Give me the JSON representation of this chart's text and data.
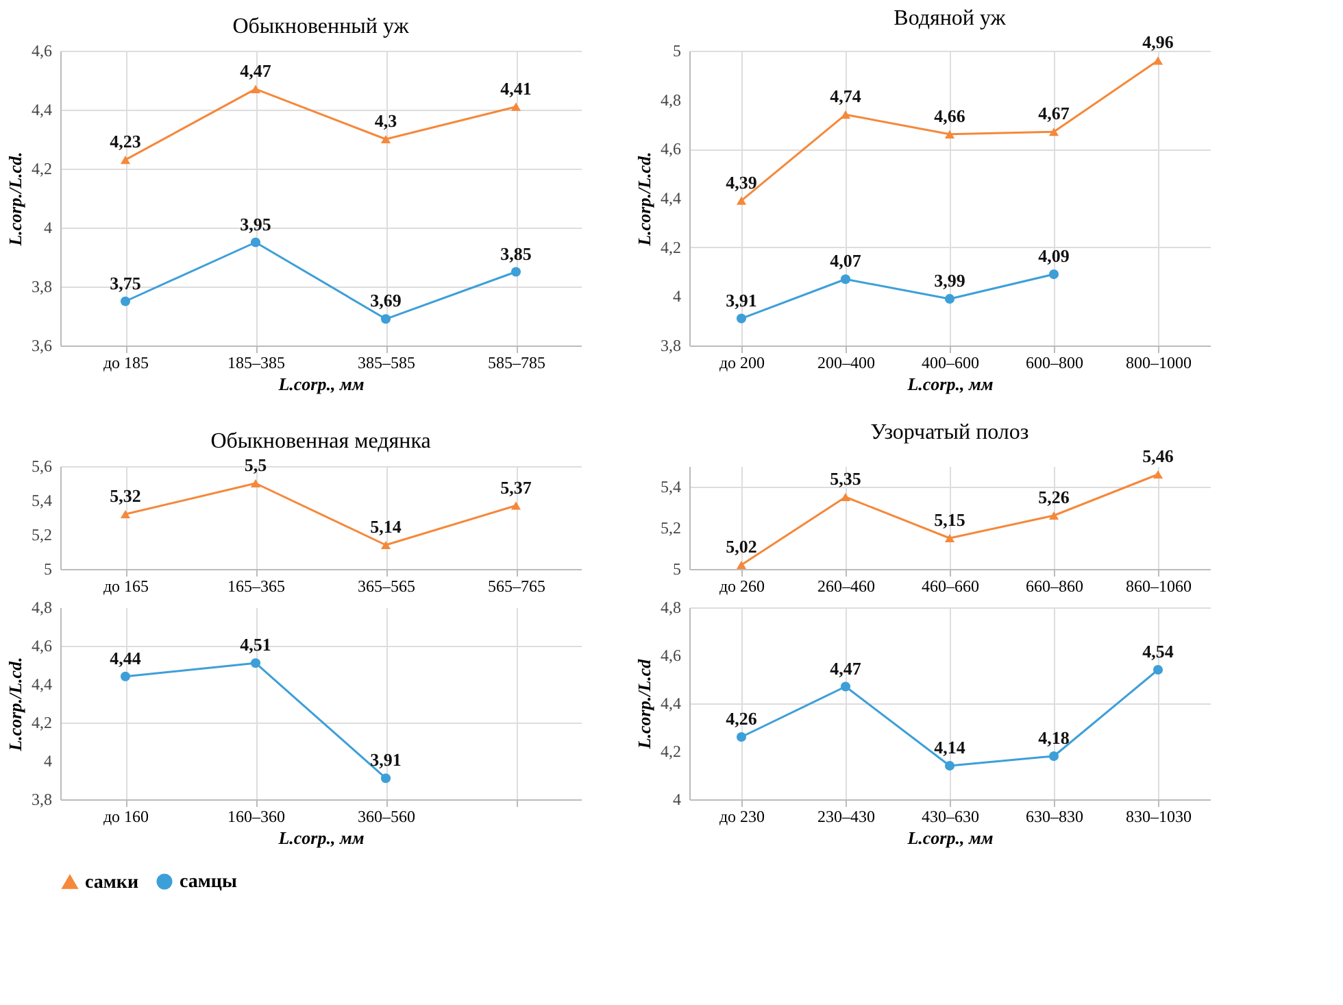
{
  "chart_data": [
    {
      "type": "line",
      "title": "Обыкновенный уж",
      "xlabel": "L.corp., мм",
      "ylabel": "L.corp./L.cd.",
      "categories": [
        "до 185",
        "185–385",
        "385–585",
        "585–785"
      ],
      "ylim": [
        3.6,
        4.6
      ],
      "yticks": [
        {
          "value": 3.6,
          "label": "3,6"
        },
        {
          "value": 3.8,
          "label": "3,8"
        },
        4,
        {
          "value": 4.2,
          "label": "4,2"
        },
        {
          "value": 4.4,
          "label": "4,4"
        },
        {
          "value": 4.6,
          "label": "4,6"
        }
      ],
      "grid": true,
      "legend": "bottom",
      "series": [
        {
          "name": "самки",
          "color": "#f5883a",
          "marker": "triangle",
          "values": [
            4.23,
            4.47,
            4.3,
            4.41
          ],
          "value_labels": [
            "4,23",
            "4,47",
            "4,3",
            "4,41"
          ]
        },
        {
          "name": "самцы",
          "color": "#3d9fd8",
          "marker": "circle",
          "values": [
            3.75,
            3.95,
            3.69,
            3.85
          ],
          "value_labels": [
            "3,75",
            "3,95",
            "3,69",
            "3,85"
          ]
        }
      ]
    },
    {
      "type": "line",
      "title": "Водяной уж",
      "xlabel": "L.corp., мм",
      "ylabel": "L.corp./L.cd.",
      "categories": [
        "до 200",
        "200–400",
        "400–600",
        "600–800",
        "800–1000"
      ],
      "ylim": [
        3.8,
        5.0
      ],
      "yticks": [
        {
          "value": 3.8,
          "label": "3,8"
        },
        4,
        {
          "value": 4.2,
          "label": "4,2"
        },
        {
          "value": 4.4,
          "label": "4,4"
        },
        {
          "value": 4.6,
          "label": "4,6"
        },
        {
          "value": 4.8,
          "label": "4,8"
        },
        5
      ],
      "grid": true,
      "series": [
        {
          "name": "самки",
          "color": "#f5883a",
          "marker": "triangle",
          "values": [
            4.39,
            4.74,
            4.66,
            4.67,
            4.96
          ],
          "value_labels": [
            "4,39",
            "4,74",
            "4,66",
            "4,67",
            "4,96"
          ]
        },
        {
          "name": "самцы",
          "color": "#3d9fd8",
          "marker": "circle",
          "values": [
            3.91,
            4.07,
            3.99,
            4.09,
            null
          ],
          "value_labels": [
            "3,91",
            "4,07",
            "3,99",
            "4,09",
            null
          ]
        }
      ]
    },
    {
      "type": "line",
      "title": "Обыкновенная медянка",
      "categories": [
        "до 165",
        "165–365",
        "365–565",
        "565–765"
      ],
      "ylim": [
        5.0,
        5.6
      ],
      "yticks": [
        5,
        {
          "value": 5.2,
          "label": "5,2"
        },
        {
          "value": 5.4,
          "label": "5,4"
        },
        {
          "value": 5.6,
          "label": "5,6"
        }
      ],
      "grid": true,
      "series": [
        {
          "name": "самки",
          "color": "#f5883a",
          "marker": "triangle",
          "values": [
            5.32,
            5.5,
            5.14,
            5.37
          ],
          "value_labels": [
            "5,32",
            "5,5",
            "5,14",
            "5,37"
          ]
        }
      ]
    },
    {
      "type": "line",
      "xlabel": "L.corp., мм",
      "ylabel": "L.corp./L.cd.",
      "categories": [
        "до 160",
        "160–360",
        "360–560",
        null
      ],
      "ylim": [
        3.8,
        4.8
      ],
      "yticks": [
        {
          "value": 3.8,
          "label": "3,8"
        },
        4,
        {
          "value": 4.2,
          "label": "4,2"
        },
        {
          "value": 4.4,
          "label": "4,4"
        },
        {
          "value": 4.6,
          "label": "4,6"
        },
        {
          "value": 4.8,
          "label": "4,8"
        }
      ],
      "grid": true,
      "series": [
        {
          "name": "самцы",
          "color": "#3d9fd8",
          "marker": "circle",
          "values": [
            4.44,
            4.51,
            3.91,
            null
          ],
          "value_labels": [
            "4,44",
            "4,51",
            "3,91",
            null
          ]
        }
      ]
    },
    {
      "type": "line",
      "title": "Узорчатый полоз",
      "categories": [
        "до 260",
        "260–460",
        "460–660",
        "660–860",
        "860–1060"
      ],
      "ylim": [
        5.0,
        5.5
      ],
      "yticks": [
        5,
        {
          "value": 5.2,
          "label": "5,2"
        },
        {
          "value": 5.4,
          "label": "5,4"
        }
      ],
      "grid": true,
      "series": [
        {
          "name": "самки",
          "color": "#f5883a",
          "marker": "triangle",
          "values": [
            5.02,
            5.35,
            5.15,
            5.26,
            5.46
          ],
          "value_labels": [
            "5,02",
            "5,35",
            "5,15",
            "5,26",
            "5,46"
          ]
        }
      ]
    },
    {
      "type": "line",
      "xlabel": "L.corp., мм",
      "ylabel": "L.corp./L.cd",
      "categories": [
        "до 230",
        "230–430",
        "430–630",
        "630–830",
        "830–1030"
      ],
      "ylim": [
        4.0,
        4.8
      ],
      "yticks": [
        4,
        {
          "value": 4.2,
          "label": "4,2"
        },
        {
          "value": 4.4,
          "label": "4,4"
        },
        {
          "value": 4.6,
          "label": "4,6"
        },
        {
          "value": 4.8,
          "label": "4,8"
        }
      ],
      "grid": true,
      "series": [
        {
          "name": "самцы",
          "color": "#3d9fd8",
          "marker": "circle",
          "values": [
            4.26,
            4.47,
            4.14,
            4.18,
            4.54
          ],
          "value_labels": [
            "4,26",
            "4,47",
            "4,14",
            "4,18",
            "4,54"
          ]
        }
      ]
    }
  ]
}
